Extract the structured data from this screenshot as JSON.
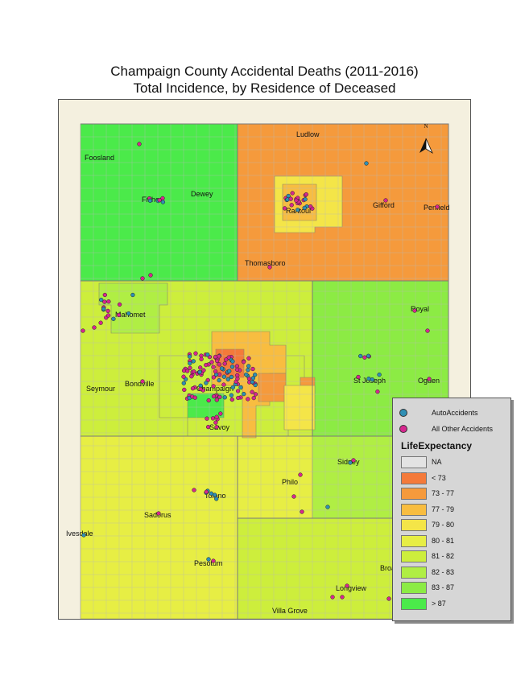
{
  "title": {
    "line1": "Champaign County Accidental Deaths (2011-2016)",
    "line2": "Total Incidence, by Residence of Deceased"
  },
  "colors": {
    "auto_accidents": "#2f8fb4",
    "other_accidents": "#d6278f",
    "background": "#f4f0df",
    "grid_line": "#b9b9b9"
  },
  "north_arrow": {
    "label": "N"
  },
  "places": [
    "Foosland",
    "Fisher",
    "Dewey",
    "Ludlow",
    "Rantoul",
    "Gifford",
    "Penfield",
    "Thomasboro",
    "Mahomet",
    "Royal",
    "Bondville",
    "Seymour",
    "Champaign",
    "St Joseph",
    "Ogden",
    "Savoy",
    "Sidney",
    "Philo",
    "Tolono",
    "Sadorus",
    "Ivesdale",
    "Pesotum",
    "Longview",
    "Broadlands",
    "Villa Grove"
  ],
  "legend": {
    "auto_label": "AutoAccidents",
    "other_label": "All Other Accidents",
    "title": "LifeExpectancy",
    "classes": [
      {
        "label": "NA",
        "color": "#e3e3e3"
      },
      {
        "label": "< 73",
        "color": "#f47a3a"
      },
      {
        "label": "73 - 77",
        "color": "#f59a3c"
      },
      {
        "label": "77 - 79",
        "color": "#f8bd40"
      },
      {
        "label": "79 - 80",
        "color": "#f4e548"
      },
      {
        "label": "80 - 81",
        "color": "#e7ee44"
      },
      {
        "label": "81 - 82",
        "color": "#cdee3c"
      },
      {
        "label": "82 - 83",
        "color": "#b0ee44"
      },
      {
        "label": "83 - 87",
        "color": "#8ceb44"
      },
      {
        "label": "> 87",
        "color": "#4bea4a"
      }
    ]
  }
}
